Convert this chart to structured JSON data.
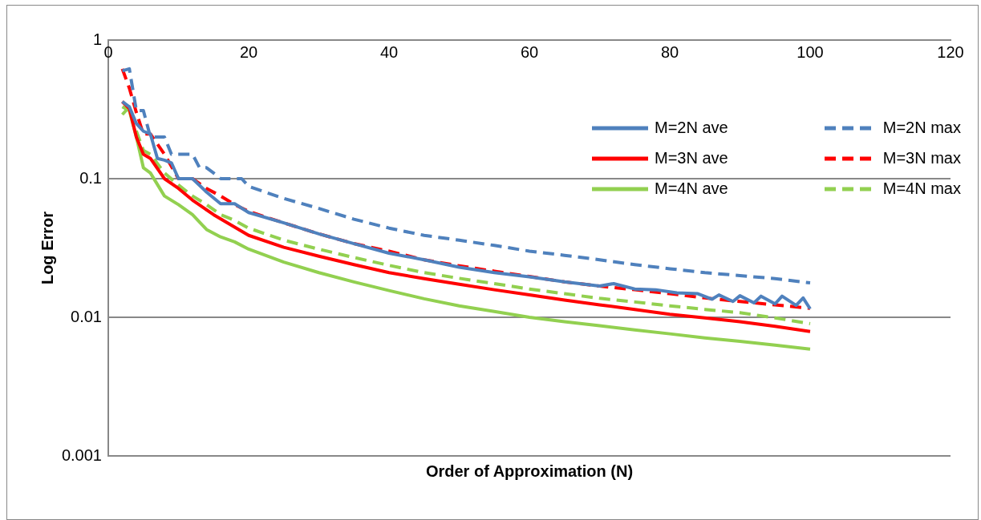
{
  "chart_data": {
    "type": "line",
    "xlabel": "Order of Approximation (N)",
    "ylabel": "Log Error",
    "xlim": [
      0,
      120
    ],
    "xticks": [
      0,
      20,
      40,
      60,
      80,
      100,
      120
    ],
    "ylim": [
      0.001,
      1
    ],
    "yticks": [
      0.001,
      0.01,
      0.1,
      1
    ],
    "log": "y",
    "grid": "y",
    "legend": "top right",
    "marker": "none",
    "series": [
      {
        "name": "M=2N ave",
        "color": "#4f81bd",
        "line_style": "solid",
        "x": [
          2,
          3,
          4,
          5,
          6,
          7,
          8,
          9,
          10,
          12,
          14,
          16,
          18,
          20,
          25,
          30,
          35,
          40,
          45,
          50,
          55,
          60,
          65,
          70,
          72,
          75,
          78,
          81,
          84,
          86,
          87,
          89,
          90,
          92,
          93,
          95,
          96,
          98,
          99,
          100
        ],
        "values": [
          0.36,
          0.33,
          0.25,
          0.22,
          0.21,
          0.14,
          0.136,
          0.13,
          0.1,
          0.1,
          0.08,
          0.066,
          0.066,
          0.057,
          0.048,
          0.04,
          0.034,
          0.029,
          0.026,
          0.023,
          0.021,
          0.0196,
          0.018,
          0.0168,
          0.0175,
          0.016,
          0.0158,
          0.015,
          0.0148,
          0.0135,
          0.0145,
          0.013,
          0.0143,
          0.0127,
          0.0142,
          0.0125,
          0.0142,
          0.0122,
          0.0138,
          0.0115
        ]
      },
      {
        "name": "M=2N max",
        "color": "#4f81bd",
        "line_style": "dashed",
        "x": [
          2,
          3,
          4,
          5,
          6,
          8,
          9,
          10,
          12,
          13,
          14,
          15,
          16,
          19,
          20,
          25,
          30,
          35,
          40,
          45,
          50,
          55,
          60,
          65,
          70,
          75,
          80,
          85,
          90,
          95,
          100
        ],
        "values": [
          0.6,
          0.62,
          0.31,
          0.31,
          0.2,
          0.2,
          0.15,
          0.15,
          0.15,
          0.12,
          0.12,
          0.11,
          0.1,
          0.1,
          0.088,
          0.072,
          0.061,
          0.051,
          0.044,
          0.039,
          0.036,
          0.033,
          0.03,
          0.028,
          0.026,
          0.024,
          0.0224,
          0.021,
          0.02,
          0.019,
          0.0177
        ]
      },
      {
        "name": "M=3N ave",
        "color": "#ff0000",
        "line_style": "solid",
        "x": [
          2,
          3,
          4,
          5,
          6,
          8,
          10,
          12,
          15,
          20,
          25,
          30,
          35,
          40,
          45,
          50,
          55,
          60,
          65,
          70,
          75,
          80,
          85,
          90,
          95,
          100
        ],
        "values": [
          0.36,
          0.32,
          0.2,
          0.15,
          0.14,
          0.1,
          0.085,
          0.07,
          0.055,
          0.039,
          0.032,
          0.0276,
          0.024,
          0.021,
          0.019,
          0.0173,
          0.0158,
          0.0145,
          0.0133,
          0.0123,
          0.0114,
          0.0105,
          0.0099,
          0.0093,
          0.0086,
          0.0079
        ]
      },
      {
        "name": "M=3N max",
        "color": "#ff0000",
        "line_style": "dashed",
        "x": [
          2,
          3,
          4,
          5,
          6,
          8,
          10,
          12,
          14,
          16,
          18,
          20,
          25,
          30,
          35,
          40,
          45,
          50,
          55,
          60,
          65,
          70,
          75,
          80,
          85,
          90,
          95,
          100
        ],
        "values": [
          0.62,
          0.45,
          0.3,
          0.21,
          0.21,
          0.15,
          0.1,
          0.1,
          0.085,
          0.075,
          0.065,
          0.058,
          0.048,
          0.04,
          0.034,
          0.03,
          0.026,
          0.0235,
          0.0215,
          0.0197,
          0.018,
          0.0168,
          0.0158,
          0.0148,
          0.0138,
          0.013,
          0.0123,
          0.0116
        ]
      },
      {
        "name": "M=4N ave",
        "color": "#92d050",
        "line_style": "solid",
        "x": [
          2,
          3,
          4,
          5,
          6,
          8,
          10,
          12,
          14,
          16,
          18,
          20,
          25,
          30,
          35,
          40,
          45,
          50,
          55,
          60,
          65,
          70,
          75,
          80,
          85,
          90,
          95,
          100
        ],
        "values": [
          0.33,
          0.31,
          0.2,
          0.12,
          0.11,
          0.075,
          0.065,
          0.055,
          0.043,
          0.038,
          0.035,
          0.031,
          0.025,
          0.021,
          0.018,
          0.0156,
          0.0136,
          0.0121,
          0.011,
          0.01,
          0.0093,
          0.0087,
          0.0081,
          0.0076,
          0.0071,
          0.0067,
          0.0063,
          0.0059
        ]
      },
      {
        "name": "M=4N max",
        "color": "#92d050",
        "line_style": "dashed",
        "x": [
          2,
          3,
          4,
          5,
          6,
          8,
          10,
          12,
          14,
          16,
          18,
          20,
          25,
          30,
          35,
          40,
          45,
          50,
          55,
          60,
          65,
          70,
          75,
          80,
          85,
          90,
          95,
          100
        ],
        "values": [
          0.29,
          0.33,
          0.22,
          0.16,
          0.15,
          0.11,
          0.09,
          0.075,
          0.065,
          0.055,
          0.05,
          0.044,
          0.036,
          0.031,
          0.027,
          0.0237,
          0.021,
          0.0191,
          0.0175,
          0.016,
          0.0148,
          0.0137,
          0.0129,
          0.0121,
          0.0114,
          0.0108,
          0.0099,
          0.009
        ]
      }
    ]
  }
}
